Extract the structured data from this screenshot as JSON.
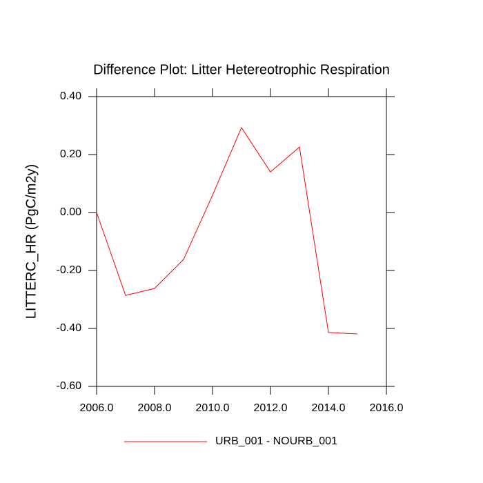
{
  "chart_data": {
    "type": "line",
    "title": "Difference Plot: Litter Hetereotrophic Respiration",
    "y_label": "LITTERC_HR  (PgC/m2y)",
    "x": [
      2006,
      2007,
      2008,
      2009,
      2010,
      2011,
      2012,
      2013,
      2014,
      2015
    ],
    "series": [
      {
        "name": "URB_001 - NOURB_001",
        "color": "#ff0000",
        "values": [
          0.0,
          -0.286,
          -0.262,
          -0.162,
          0.06,
          0.293,
          0.14,
          0.226,
          -0.414,
          -0.419
        ]
      }
    ],
    "xlim": [
      2006,
      2016
    ],
    "xticks": [
      {
        "value": 2006,
        "label": "2006.0"
      },
      {
        "value": 2008,
        "label": "2008.0"
      },
      {
        "value": 2010,
        "label": "2010.0"
      },
      {
        "value": 2012,
        "label": "2012.0"
      },
      {
        "value": 2014,
        "label": "2014.0"
      },
      {
        "value": 2016,
        "label": "2016.0"
      }
    ],
    "ylim": [
      -0.6,
      0.4
    ],
    "yticks": [
      {
        "value": -0.6,
        "label": "-0.60"
      },
      {
        "value": -0.4,
        "label": "-0.40"
      },
      {
        "value": -0.2,
        "label": "-0.20"
      },
      {
        "value": 0,
        "label": "0.00"
      },
      {
        "value": 0.2,
        "label": "0.20"
      },
      {
        "value": 0.4,
        "label": "0.40"
      }
    ]
  }
}
